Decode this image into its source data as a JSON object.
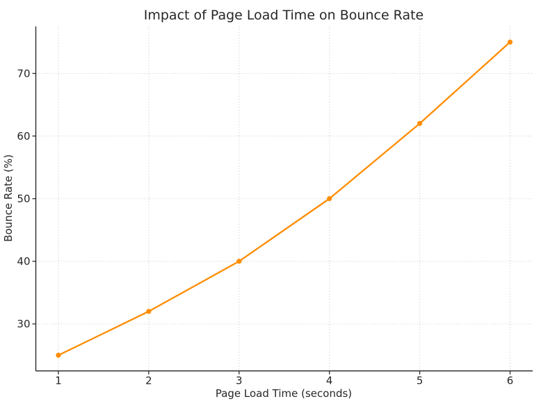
{
  "chart_data": {
    "type": "line",
    "title": "Impact of Page Load Time on Bounce Rate",
    "xlabel": "Page Load Time (seconds)",
    "ylabel": "Bounce Rate (%)",
    "x": [
      1,
      2,
      3,
      4,
      5,
      6
    ],
    "y": [
      25,
      32,
      40,
      50,
      62,
      75
    ],
    "xticks": [
      1,
      2,
      3,
      4,
      5,
      6
    ],
    "yticks": [
      30,
      40,
      50,
      60,
      70
    ],
    "xtick_labels": [
      "1",
      "2",
      "3",
      "4",
      "5",
      "6"
    ],
    "ytick_labels": [
      "30",
      "40",
      "50",
      "60",
      "70"
    ],
    "xlim": [
      0.75,
      6.25
    ],
    "ylim": [
      22.5,
      77.5
    ],
    "grid": true,
    "legend": "none",
    "line_color": "#ff8c00",
    "marker": "circle",
    "grid_color": "#d9d9d9",
    "axis_color": "#2b2b2b",
    "text_color": "#262626",
    "background_color": "#ffffff"
  }
}
